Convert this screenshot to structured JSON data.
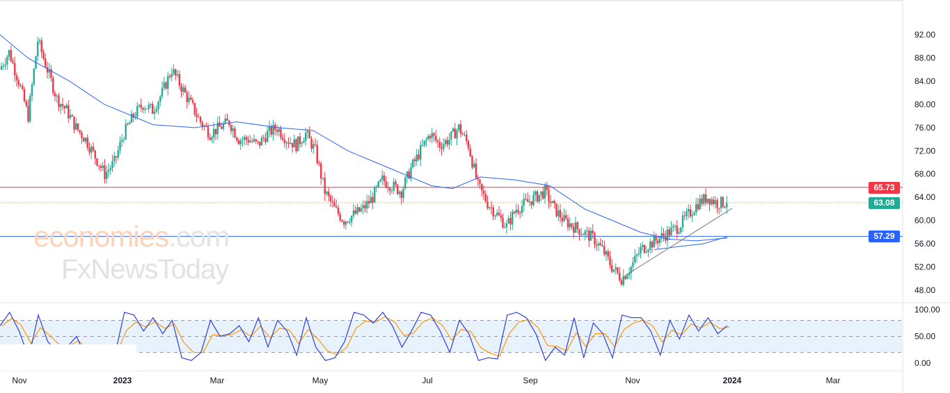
{
  "chart_data": {
    "type": "candlestick",
    "price_axis": {
      "ticks": [
        "92.00",
        "88.00",
        "84.00",
        "80.00",
        "76.00",
        "72.00",
        "68.00",
        "64.00",
        "60.00",
        "56.00",
        "52.00",
        "48.00"
      ],
      "range": [
        48,
        92
      ]
    },
    "osc_axis": {
      "ticks": [
        "100.00",
        "50.00",
        "0.00"
      ],
      "range": [
        0,
        100
      ],
      "band": [
        20,
        80
      ]
    },
    "x_ticks": [
      "Nov",
      "2023",
      "Mar",
      "May",
      "Jul",
      "Sep",
      "Nov",
      "2024",
      "Mar"
    ],
    "weekly_closes": [
      86,
      89,
      84,
      78,
      91,
      86,
      81,
      79,
      76,
      74,
      71,
      68,
      70,
      75,
      78,
      80,
      79,
      82,
      86,
      83,
      80,
      77,
      75,
      76,
      77,
      74,
      74,
      73,
      75,
      76,
      74,
      73,
      75,
      72,
      65,
      62,
      60,
      61,
      62,
      64,
      67,
      66,
      65,
      69,
      72,
      75,
      73,
      74,
      76,
      73,
      66,
      63,
      61,
      59,
      62,
      63,
      64,
      65,
      62,
      60,
      59,
      58,
      57,
      55,
      52,
      50,
      52,
      55,
      56,
      57,
      58,
      59,
      61,
      63,
      64,
      63,
      63.08
    ],
    "moving_average": [
      [
        0,
        92
      ],
      [
        40,
        88
      ],
      [
        100,
        84
      ],
      [
        150,
        80
      ],
      [
        220,
        76.5
      ],
      [
        280,
        76
      ],
      [
        340,
        77
      ],
      [
        400,
        76
      ],
      [
        450,
        75.5
      ],
      [
        500,
        72
      ],
      [
        540,
        70
      ],
      [
        580,
        68
      ],
      [
        620,
        66
      ],
      [
        650,
        65.5
      ],
      [
        690,
        67.5
      ],
      [
        740,
        67
      ],
      [
        790,
        66
      ],
      [
        840,
        62
      ],
      [
        880,
        60
      ],
      [
        920,
        58
      ],
      [
        960,
        56.8
      ],
      [
        1000,
        56.5
      ],
      [
        1045,
        57
      ]
    ],
    "long_ma": [
      [
        940,
        55
      ],
      [
        980,
        55.6
      ],
      [
        1010,
        56
      ],
      [
        1045,
        57.2
      ]
    ],
    "trendline": [
      [
        898,
        50.5
      ],
      [
        1052,
        62.1
      ]
    ],
    "horizontal_levels": [
      {
        "value": 65.73,
        "label": "65.73",
        "color": "#f23645"
      },
      {
        "value": 57.29,
        "label": "57.29",
        "color": "#2962ff"
      }
    ],
    "last_price": {
      "value": 63.08,
      "label": "63.08",
      "color": "#22ab94"
    },
    "stochastic_k": [
      70,
      95,
      60,
      10,
      90,
      40,
      20,
      30,
      50,
      10,
      20,
      30,
      15,
      95,
      90,
      60,
      85,
      55,
      80,
      10,
      5,
      20,
      80,
      50,
      55,
      70,
      40,
      85,
      30,
      80,
      60,
      15,
      85,
      30,
      5,
      10,
      40,
      95,
      90,
      75,
      95,
      70,
      30,
      60,
      95,
      90,
      60,
      20,
      80,
      55,
      5,
      10,
      8,
      90,
      95,
      85,
      55,
      5,
      30,
      15,
      85,
      10,
      75,
      55,
      10,
      90,
      85,
      85,
      60,
      15,
      80,
      45,
      90,
      60,
      85,
      55,
      70
    ],
    "watermark": "economies.com FxNewsToday"
  }
}
